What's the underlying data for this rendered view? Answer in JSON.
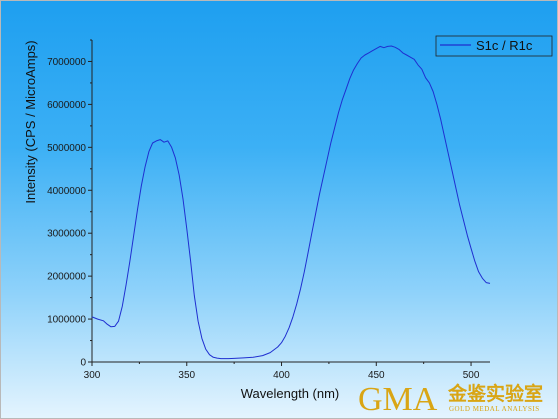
{
  "chart_data": {
    "type": "line",
    "title": "",
    "xlabel": "Wavelength (nm)",
    "ylabel": "Intensity (CPS / MicroAmps)",
    "xlim": [
      300,
      510
    ],
    "ylim": [
      0,
      7500000
    ],
    "xticks": [
      300,
      350,
      400,
      450,
      500
    ],
    "xtick_labels": [
      "300",
      "350",
      "400",
      "450",
      "500"
    ],
    "yticks": [
      0,
      1000000,
      2000000,
      3000000,
      4000000,
      5000000,
      6000000,
      7000000
    ],
    "ytick_labels": [
      "0",
      "1000000",
      "2000000",
      "3000000",
      "4000000",
      "5000000",
      "6000000",
      "7000000"
    ],
    "grid": false,
    "legend_position": "top-right",
    "series": [
      {
        "name": "S1c / R1c",
        "color": "#1f2fd0",
        "x": [
          300,
          303,
          306,
          308,
          310,
          312,
          314,
          316,
          318,
          320,
          322,
          324,
          326,
          328,
          330,
          332,
          334,
          336,
          338,
          340,
          342,
          344,
          346,
          348,
          350,
          352,
          354,
          356,
          358,
          360,
          362,
          364,
          366,
          368,
          370,
          372,
          375,
          380,
          385,
          390,
          394,
          398,
          400,
          402,
          404,
          406,
          408,
          410,
          412,
          414,
          416,
          418,
          420,
          422,
          424,
          426,
          428,
          430,
          432,
          434,
          436,
          438,
          440,
          442,
          444,
          446,
          448,
          450,
          452,
          454,
          456,
          458,
          460,
          462,
          464,
          466,
          468,
          470,
          472,
          474,
          476,
          478,
          480,
          482,
          484,
          486,
          488,
          490,
          492,
          494,
          496,
          498,
          500,
          502,
          504,
          506,
          508,
          510
        ],
        "y": [
          1050000,
          1000000,
          960000,
          880000,
          820000,
          830000,
          950000,
          1300000,
          1800000,
          2350000,
          2950000,
          3550000,
          4100000,
          4550000,
          4900000,
          5100000,
          5150000,
          5180000,
          5120000,
          5150000,
          5000000,
          4750000,
          4350000,
          3800000,
          3100000,
          2350000,
          1550000,
          950000,
          550000,
          300000,
          170000,
          110000,
          90000,
          80000,
          80000,
          80000,
          85000,
          95000,
          110000,
          150000,
          220000,
          350000,
          450000,
          600000,
          800000,
          1050000,
          1350000,
          1700000,
          2100000,
          2550000,
          3000000,
          3450000,
          3900000,
          4300000,
          4700000,
          5100000,
          5450000,
          5800000,
          6100000,
          6350000,
          6600000,
          6800000,
          6950000,
          7080000,
          7150000,
          7200000,
          7250000,
          7300000,
          7350000,
          7320000,
          7350000,
          7360000,
          7330000,
          7280000,
          7200000,
          7150000,
          7100000,
          7050000,
          6920000,
          6820000,
          6620000,
          6500000,
          6300000,
          6000000,
          5650000,
          5250000,
          4850000,
          4450000,
          4050000,
          3650000,
          3300000,
          2950000,
          2650000,
          2350000,
          2100000,
          1950000,
          1850000,
          1830000
        ]
      }
    ]
  },
  "logo": {
    "brand": "GMA",
    "chinese": "金鉴实验室",
    "tagline": "GOLD MEDAL ANALYSIS"
  }
}
